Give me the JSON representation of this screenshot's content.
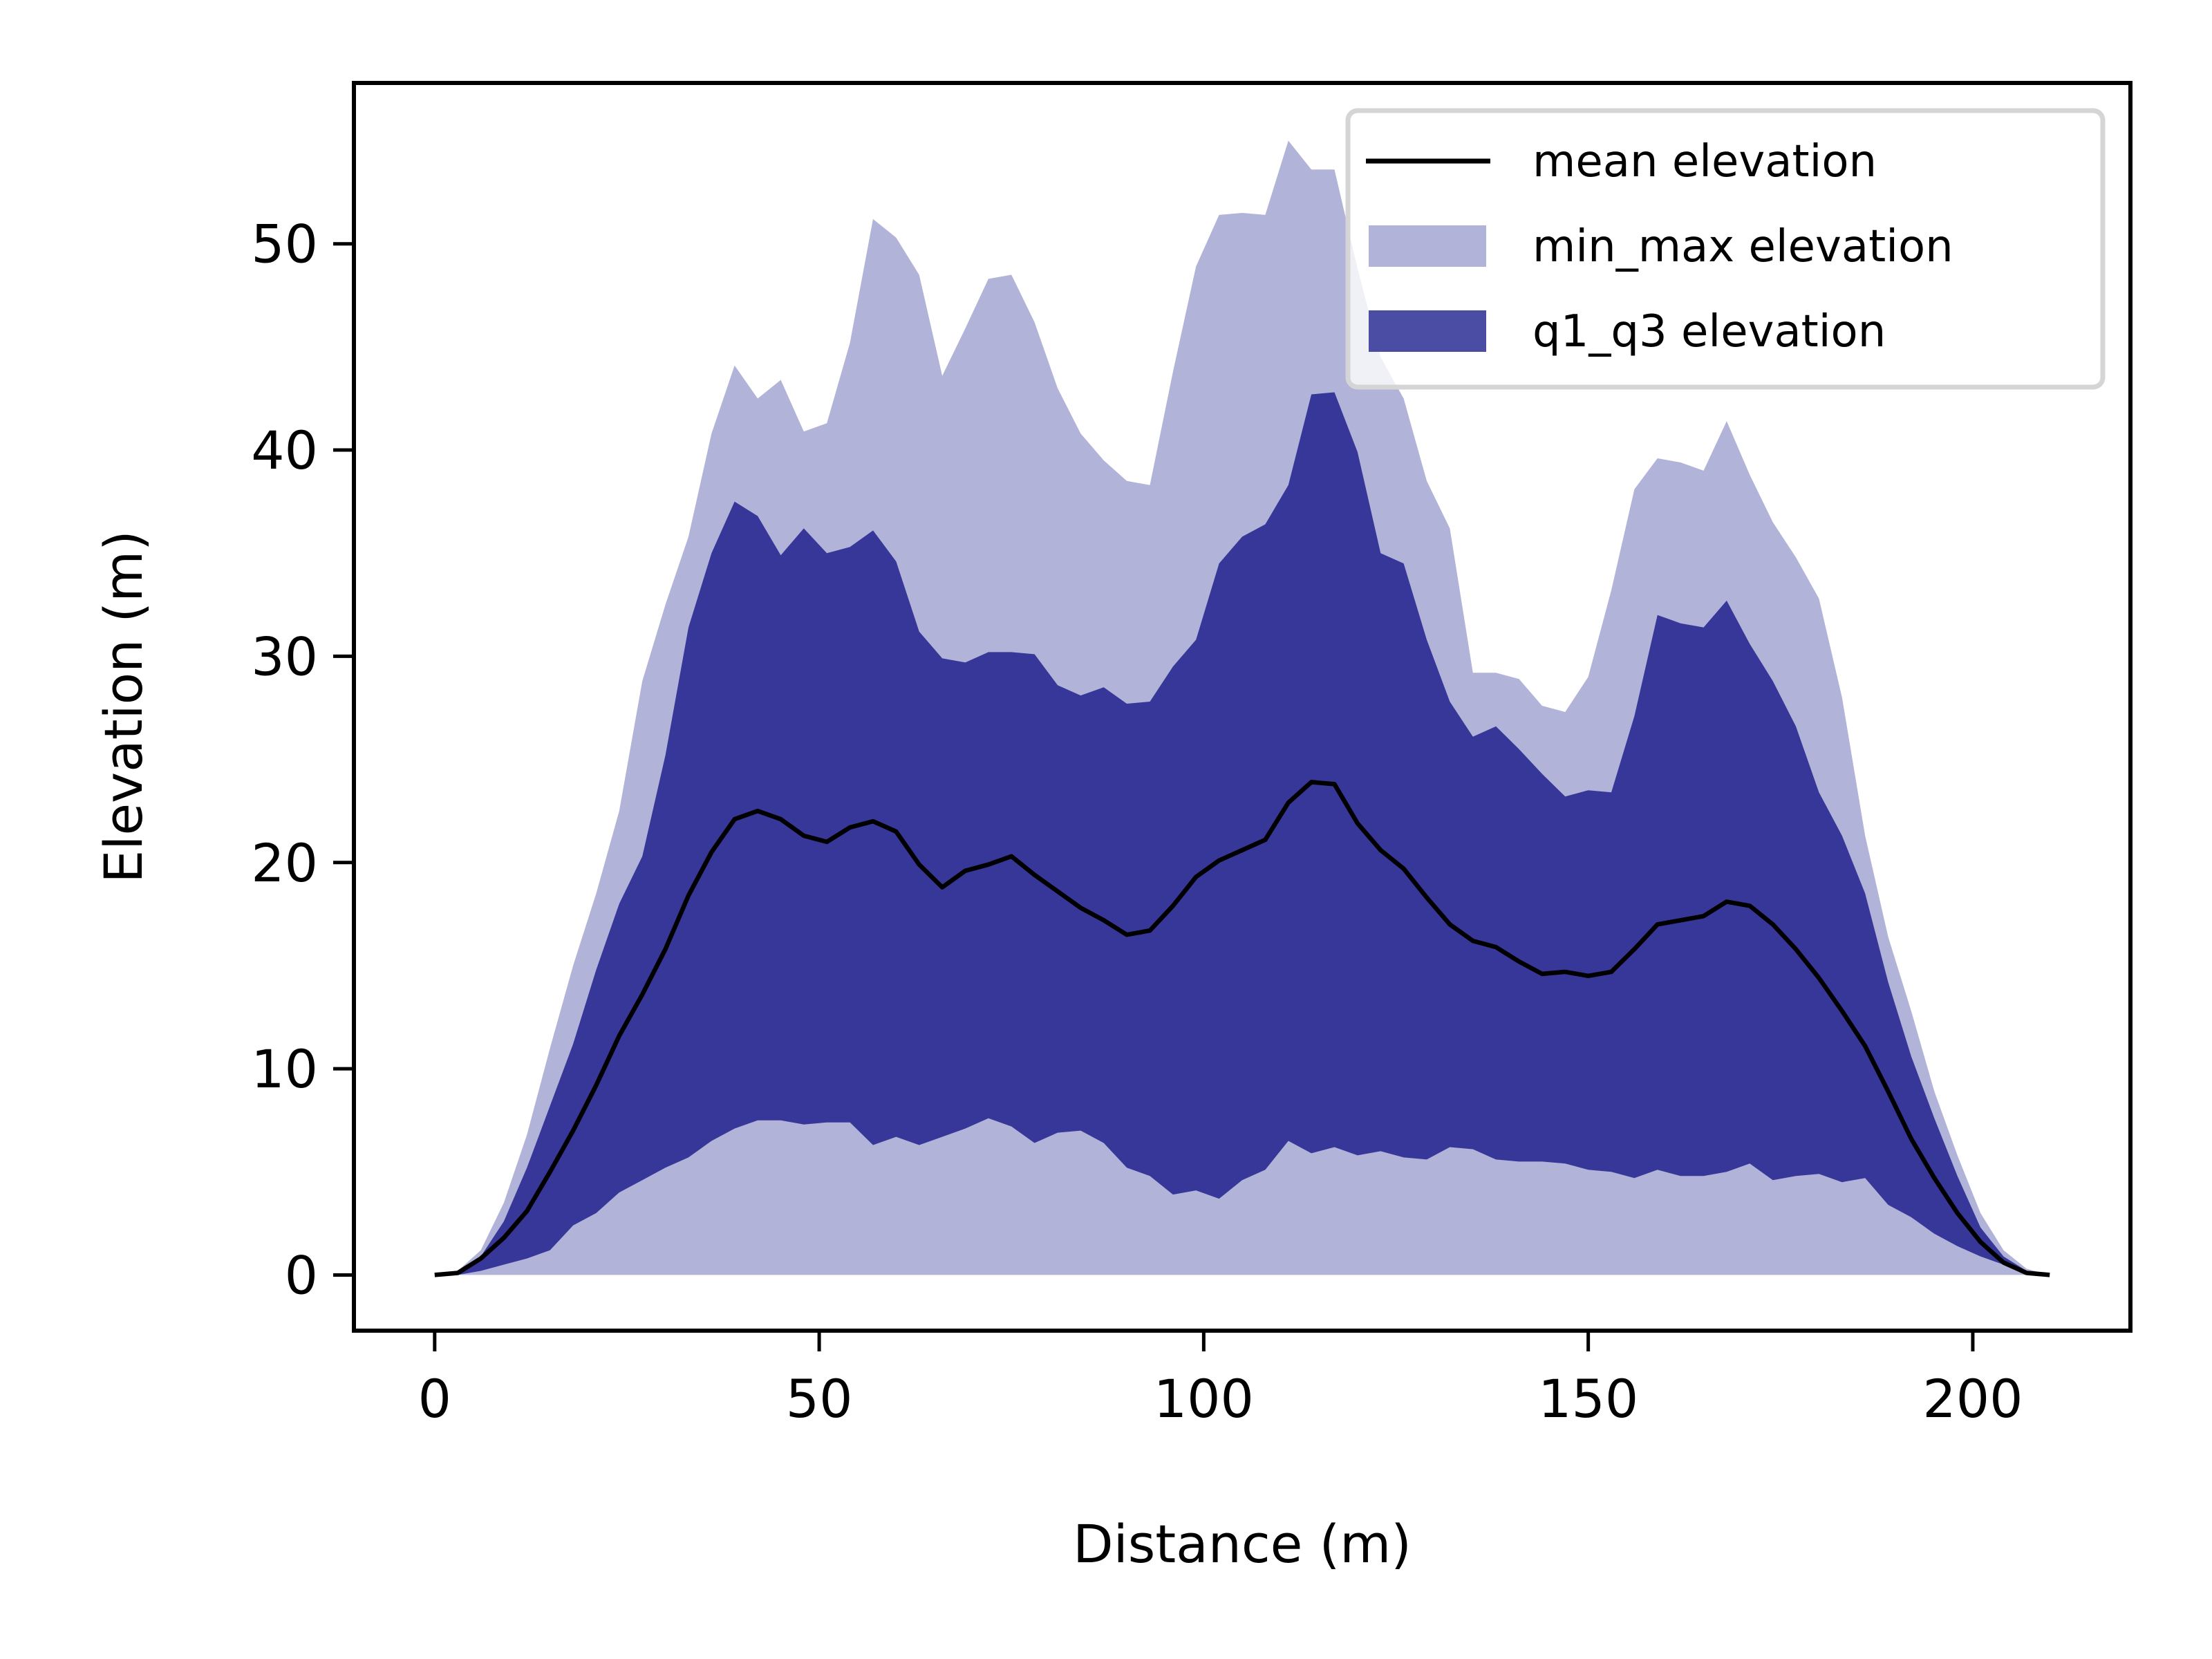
{
  "chart_data": {
    "type": "area",
    "title": "",
    "xlabel": "Distance (m)",
    "ylabel": "Elevation (m)",
    "xlim": [
      -10.5,
      220.5
    ],
    "ylim": [
      -2.7,
      57.8
    ],
    "xticks": [
      0,
      50,
      100,
      150,
      200
    ],
    "yticks": [
      0,
      10,
      20,
      30,
      40,
      50
    ],
    "xtick_labels": [
      "0",
      "50",
      "100",
      "150",
      "200"
    ],
    "ytick_labels": [
      "0",
      "10",
      "20",
      "30",
      "40",
      "50"
    ],
    "grid": false,
    "legend_position": "top-right",
    "x": [
      0,
      3,
      6,
      9,
      12,
      15,
      18,
      21,
      24,
      27,
      30,
      33,
      36,
      39,
      42,
      45,
      48,
      51,
      54,
      57,
      60,
      63,
      66,
      69,
      72,
      75,
      78,
      81,
      84,
      87,
      90,
      93,
      96,
      99,
      102,
      105,
      108,
      111,
      114,
      117,
      120,
      123,
      126,
      129,
      132,
      135,
      138,
      141,
      144,
      147,
      150,
      153,
      156,
      159,
      162,
      165,
      168,
      171,
      174,
      177,
      180,
      183,
      186,
      189,
      192,
      195,
      198,
      201,
      204,
      207,
      210
    ],
    "series": [
      {
        "name": "min_max elevation",
        "kind": "band",
        "color": "#B2B3D8",
        "upper": [
          0,
          0.2,
          1.2,
          3.5,
          6.8,
          11,
          15,
          18.5,
          22.5,
          28.8,
          32.5,
          35.8,
          40.8,
          44.1,
          42.5,
          43.4,
          40.9,
          41.3,
          45.2,
          51.2,
          50.3,
          48.5,
          43.6,
          45.9,
          48.3,
          48.5,
          46.2,
          43,
          40.8,
          39.5,
          38.5,
          38.3,
          43.8,
          48.9,
          51.4,
          51.5,
          51.4,
          55,
          53.6,
          53.6,
          48.8,
          44.5,
          42.5,
          38.5,
          36.2,
          29.2,
          29.2,
          28.9,
          27.6,
          27.3,
          29,
          33.2,
          38.1,
          39.6,
          39.4,
          39,
          41.4,
          38.8,
          36.5,
          34.8,
          32.8,
          28,
          21.3,
          16.4,
          12.8,
          8.9,
          5.8,
          3,
          1.2,
          0.3,
          0
        ],
        "lower": [
          0,
          0,
          0,
          0,
          0,
          0,
          0,
          0,
          0,
          0,
          0,
          0,
          0,
          0,
          0,
          0,
          0,
          0,
          0,
          0,
          0,
          0,
          0,
          0,
          0,
          0,
          0,
          0,
          0,
          0,
          0,
          0,
          0,
          0,
          0,
          0,
          0,
          0,
          0,
          0,
          0,
          0,
          0,
          0,
          0,
          0,
          0,
          0,
          0,
          0,
          0,
          0,
          0,
          0,
          0,
          0,
          0,
          0,
          0,
          0,
          0,
          0,
          0,
          0,
          0,
          0,
          0,
          0,
          0,
          0,
          0
        ]
      },
      {
        "name": "q1_q3 elevation",
        "kind": "band",
        "color": "#373799",
        "upper": [
          0,
          0.1,
          0.9,
          2.6,
          5.2,
          8.2,
          11.2,
          14.8,
          18,
          20.3,
          25.2,
          31.4,
          35,
          37.5,
          36.8,
          34.9,
          36.2,
          35,
          35.3,
          36.1,
          34.6,
          31.2,
          29.9,
          29.7,
          30.2,
          30.2,
          30.1,
          28.6,
          28.1,
          28.5,
          27.7,
          27.8,
          29.5,
          30.8,
          34.5,
          35.8,
          36.4,
          38.3,
          42.7,
          42.8,
          39.9,
          35,
          34.5,
          30.8,
          27.8,
          26.1,
          26.6,
          25.5,
          24.3,
          23.2,
          23.5,
          23.4,
          27.1,
          32,
          31.6,
          31.4,
          32.7,
          30.6,
          28.8,
          26.6,
          23.4,
          21.3,
          18.5,
          14.2,
          10.6,
          7.6,
          4.8,
          2.3,
          0.9,
          0.2,
          0
        ],
        "lower": [
          0,
          0,
          0.2,
          0.5,
          0.8,
          1.2,
          2.4,
          3,
          4,
          4.6,
          5.2,
          5.7,
          6.5,
          7.1,
          7.5,
          7.5,
          7.3,
          7.4,
          7.4,
          6.3,
          6.7,
          6.3,
          6.7,
          7.1,
          7.6,
          7.2,
          6.4,
          6.9,
          7,
          6.4,
          5.2,
          4.8,
          3.9,
          4.1,
          3.7,
          4.6,
          5.1,
          6.5,
          5.9,
          6.2,
          5.8,
          6,
          5.7,
          5.6,
          6.2,
          6.1,
          5.6,
          5.5,
          5.5,
          5.4,
          5.1,
          5,
          4.7,
          5.1,
          4.8,
          4.8,
          5,
          5.4,
          4.6,
          4.8,
          4.9,
          4.5,
          4.7,
          3.4,
          2.8,
          2,
          1.4,
          0.9,
          0.5,
          0.1,
          0
        ]
      },
      {
        "name": "mean elevation",
        "kind": "line",
        "color": "#000000",
        "values": [
          0,
          0.1,
          0.8,
          1.8,
          3.1,
          5,
          7,
          9.2,
          11.6,
          13.6,
          15.8,
          18.4,
          20.5,
          22.1,
          22.5,
          22.1,
          21.3,
          21,
          21.7,
          22,
          21.5,
          19.9,
          18.8,
          19.6,
          19.9,
          20.3,
          19.4,
          18.6,
          17.8,
          17.2,
          16.5,
          16.7,
          17.9,
          19.3,
          20.1,
          20.6,
          21.1,
          22.9,
          23.9,
          23.8,
          21.9,
          20.6,
          19.7,
          18.3,
          17,
          16.2,
          15.9,
          15.2,
          14.6,
          14.7,
          14.5,
          14.7,
          15.8,
          17,
          17.2,
          17.4,
          18.1,
          17.9,
          17,
          15.8,
          14.4,
          12.8,
          11.1,
          8.9,
          6.6,
          4.7,
          3,
          1.6,
          0.6,
          0.1,
          0
        ]
      }
    ],
    "legend": [
      {
        "label": "mean elevation",
        "kind": "line",
        "color": "#000000"
      },
      {
        "label": "min_max elevation",
        "kind": "patch",
        "color": "#B2B3D8"
      },
      {
        "label": "q1_q3 elevation",
        "kind": "patch",
        "color": "#4B4CA4"
      }
    ]
  }
}
